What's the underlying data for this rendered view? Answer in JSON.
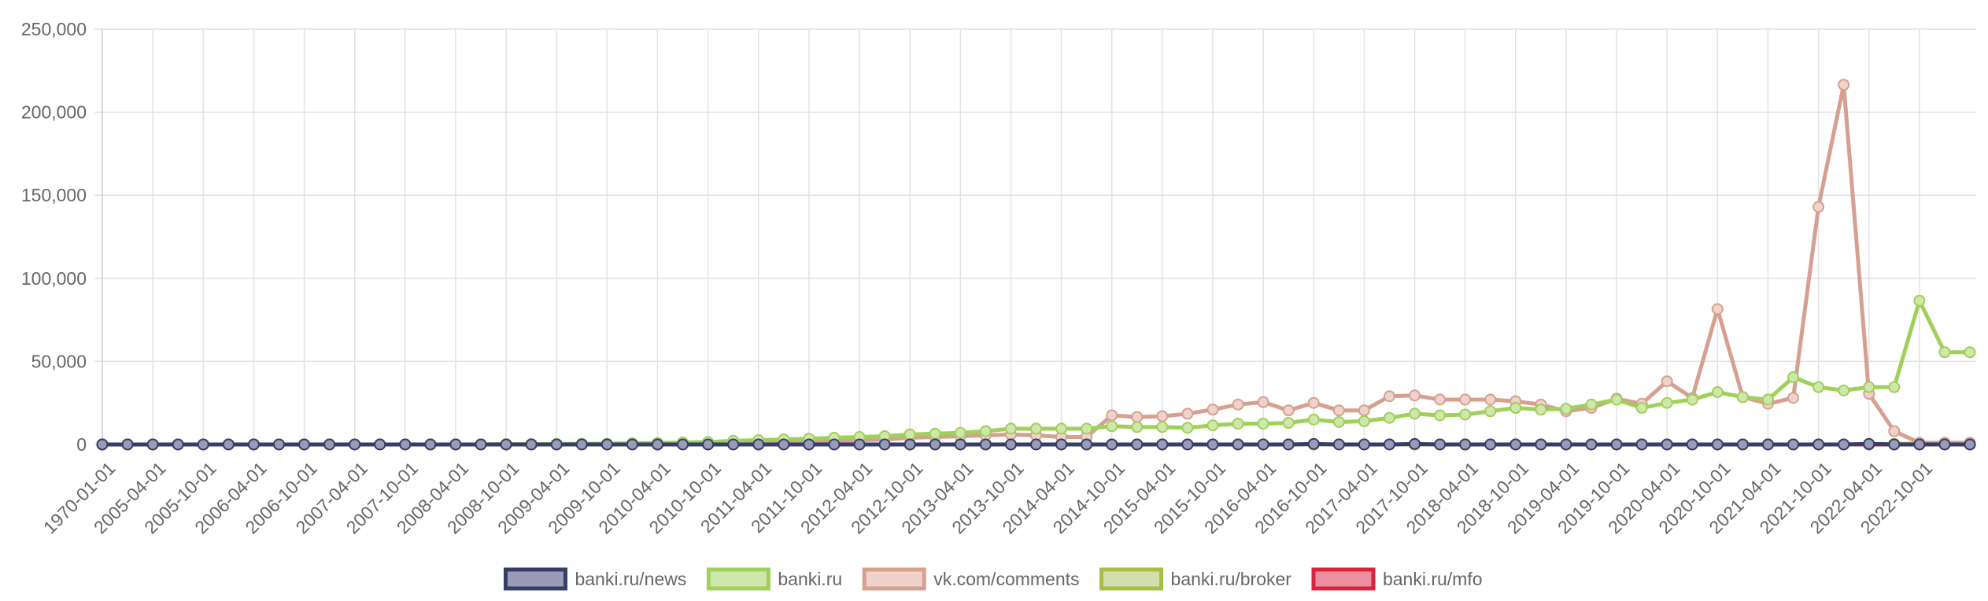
{
  "chart_data": {
    "type": "line",
    "title": "",
    "xlabel": "",
    "ylabel": "",
    "ylim": [
      0,
      250000
    ],
    "y_ticks": [
      0,
      50000,
      100000,
      150000,
      200000,
      250000
    ],
    "y_tick_labels": [
      "0",
      "50,000",
      "100,000",
      "150,000",
      "200,000",
      "250,000"
    ],
    "x_tick_labels": [
      "1970-01-01",
      "2005-04-01",
      "2005-10-01",
      "2006-04-01",
      "2006-10-01",
      "2007-04-01",
      "2007-10-01",
      "2008-04-01",
      "2008-10-01",
      "2009-04-01",
      "2009-10-01",
      "2010-04-01",
      "2010-10-01",
      "2011-04-01",
      "2011-10-01",
      "2012-04-01",
      "2012-10-01",
      "2013-04-01",
      "2013-10-01",
      "2014-04-01",
      "2014-10-01",
      "2015-04-01",
      "2015-10-01",
      "2016-04-01",
      "2016-10-01",
      "2017-04-01",
      "2017-10-01",
      "2018-04-01",
      "2018-10-01",
      "2019-04-01",
      "2019-10-01",
      "2020-04-01",
      "2020-10-01",
      "2021-04-01",
      "2021-10-01",
      "2022-04-01",
      "2022-10-01"
    ],
    "grid": true,
    "legend_position": "bottom",
    "categories": [
      "1970-01-01",
      "2005-01-01",
      "2005-04-01",
      "2005-07-01",
      "2005-10-01",
      "2006-01-01",
      "2006-04-01",
      "2006-07-01",
      "2006-10-01",
      "2007-01-01",
      "2007-04-01",
      "2007-07-01",
      "2007-10-01",
      "2008-01-01",
      "2008-04-01",
      "2008-07-01",
      "2008-10-01",
      "2009-01-01",
      "2009-04-01",
      "2009-07-01",
      "2009-10-01",
      "2010-01-01",
      "2010-04-01",
      "2010-07-01",
      "2010-10-01",
      "2011-01-01",
      "2011-04-01",
      "2011-07-01",
      "2011-10-01",
      "2012-01-01",
      "2012-04-01",
      "2012-07-01",
      "2012-10-01",
      "2013-01-01",
      "2013-04-01",
      "2013-07-01",
      "2013-10-01",
      "2014-01-01",
      "2014-04-01",
      "2014-07-01",
      "2014-10-01",
      "2015-01-01",
      "2015-04-01",
      "2015-07-01",
      "2015-10-01",
      "2016-01-01",
      "2016-04-01",
      "2016-07-01",
      "2016-10-01",
      "2017-01-01",
      "2017-04-01",
      "2017-07-01",
      "2017-10-01",
      "2018-01-01",
      "2018-04-01",
      "2018-07-01",
      "2018-10-01",
      "2019-01-01",
      "2019-04-01",
      "2019-07-01",
      "2019-10-01",
      "2020-01-01",
      "2020-04-01",
      "2020-07-01",
      "2020-10-01",
      "2021-01-01",
      "2021-04-01",
      "2021-07-01",
      "2021-10-01",
      "2022-01-01",
      "2022-04-01",
      "2022-07-01",
      "2022-10-01",
      "2023-01-01",
      "2023-04-01"
    ],
    "series": [
      {
        "name": "banki.ru/news",
        "color": "#363d6b",
        "fill": "#9a9cb7",
        "values": [
          0,
          0,
          0,
          0,
          0,
          0,
          0,
          0,
          0,
          0,
          0,
          0,
          0,
          0,
          0,
          0,
          0,
          0,
          0,
          0,
          0,
          0,
          0,
          0,
          0,
          0,
          0,
          0,
          0,
          0,
          0,
          0,
          0,
          0,
          0,
          0,
          0,
          0,
          0,
          0,
          0,
          0,
          0,
          0,
          0,
          0,
          0,
          0,
          300,
          0,
          0,
          0,
          300,
          0,
          0,
          0,
          0,
          0,
          0,
          0,
          0,
          0,
          0,
          0,
          0,
          0,
          0,
          0,
          0,
          0,
          300,
          0,
          0,
          0,
          0
        ]
      },
      {
        "name": "banki.ru",
        "color": "#9fd05a",
        "fill": "#cfe7ab",
        "values": [
          0,
          0,
          0,
          0,
          0,
          0,
          0,
          0,
          0,
          0,
          0,
          0,
          0,
          0,
          0,
          0,
          200,
          200,
          300,
          400,
          500,
          700,
          900,
          1200,
          1500,
          2200,
          2600,
          3000,
          3500,
          4000,
          4500,
          5000,
          6000,
          6500,
          7000,
          8000,
          9500,
          9500,
          9500,
          9500,
          11000,
          10500,
          10500,
          10000,
          11500,
          12500,
          12500,
          13000,
          15000,
          13500,
          14000,
          16000,
          18500,
          17500,
          18000,
          20000,
          22000,
          21000,
          21500,
          24000,
          27000,
          22000,
          25000,
          27000,
          31500,
          28500,
          27000,
          40500,
          34500,
          32500,
          34500,
          34500,
          86500,
          55500,
          55500
        ]
      },
      {
        "name": "vk.com/comments",
        "color": "#d6a090",
        "fill": "#efd2cb",
        "values": [
          0,
          0,
          0,
          0,
          0,
          0,
          0,
          0,
          0,
          0,
          0,
          0,
          0,
          0,
          0,
          0,
          0,
          0,
          0,
          0,
          0,
          0,
          0,
          0,
          0,
          500,
          800,
          1000,
          1500,
          2000,
          2500,
          3000,
          4000,
          4500,
          5000,
          5500,
          6000,
          5500,
          4500,
          4500,
          17500,
          16500,
          17000,
          18500,
          21000,
          24000,
          25500,
          20500,
          25000,
          20500,
          20500,
          29000,
          29500,
          27000,
          27000,
          27000,
          26000,
          24000,
          20000,
          22000,
          27500,
          24500,
          38000,
          28000,
          81500,
          28500,
          24500,
          28000,
          143000,
          216500,
          30500,
          8000,
          1000,
          1000,
          1000
        ]
      },
      {
        "name": "banki.ru/broker",
        "color": "#a8bd44",
        "fill": "#d3deaf",
        "values": [
          0,
          0,
          0,
          0,
          0,
          0,
          0,
          0,
          0,
          0,
          0,
          0,
          0,
          0,
          0,
          0,
          0,
          0,
          0,
          0,
          0,
          0,
          0,
          0,
          0,
          0,
          0,
          0,
          0,
          0,
          0,
          0,
          0,
          0,
          0,
          0,
          0,
          0,
          0,
          0,
          0,
          0,
          0,
          0,
          0,
          0,
          0,
          0,
          0,
          0,
          0,
          0,
          0,
          0,
          0,
          0,
          0,
          0,
          0,
          0,
          0,
          0,
          0,
          0,
          0,
          0,
          0,
          0,
          0,
          0,
          300,
          300,
          500,
          1000,
          1000
        ]
      },
      {
        "name": "banki.ru/mfo",
        "color": "#d8243e",
        "fill": "#eb909e",
        "values": [
          0,
          0,
          0,
          0,
          0,
          0,
          0,
          0,
          0,
          0,
          0,
          0,
          0,
          0,
          0,
          0,
          0,
          0,
          0,
          0,
          0,
          0,
          0,
          0,
          0,
          0,
          0,
          0,
          0,
          0,
          0,
          0,
          0,
          0,
          0,
          0,
          0,
          0,
          0,
          0,
          0,
          0,
          0,
          0,
          0,
          0,
          0,
          0,
          0,
          0,
          0,
          0,
          0,
          0,
          0,
          0,
          0,
          0,
          0,
          0,
          0,
          0,
          0,
          0,
          0,
          0,
          0,
          0,
          0,
          0,
          0,
          0,
          0,
          0,
          0
        ]
      }
    ],
    "draw_order": [
      "banki.ru/mfo",
      "banki.ru/broker",
      "vk.com/comments",
      "banki.ru",
      "banki.ru/news"
    ]
  }
}
